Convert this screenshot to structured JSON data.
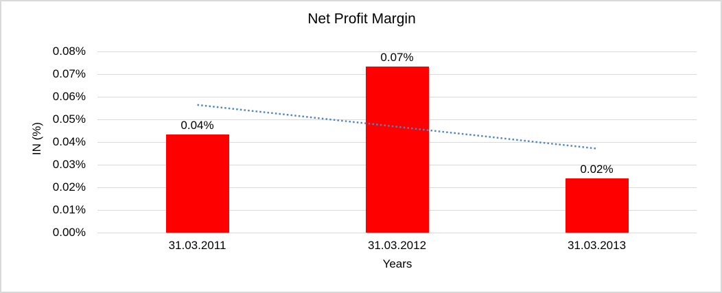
{
  "chart_data": {
    "type": "bar",
    "title": "Net Profit Margin",
    "xlabel": "Years",
    "ylabel": "IN (%)",
    "categories": [
      "31.03.2011",
      "31.03.2012",
      "31.03.2013"
    ],
    "values": [
      0.0432,
      0.0733,
      0.0239
    ],
    "data_labels": [
      "0.04%",
      "0.07%",
      "0.02%"
    ],
    "ylim": [
      0,
      0.08
    ],
    "ytick_step": 0.01,
    "ytick_labels": [
      "0.00%",
      "0.01%",
      "0.02%",
      "0.03%",
      "0.04%",
      "0.05%",
      "0.06%",
      "0.07%",
      "0.08%"
    ],
    "grid": true,
    "legend": "none",
    "bar_color": "#ff0000",
    "gridline_color": "#d9d9d9",
    "border_color": "#d9d9d9",
    "text_color": "#000000",
    "trendline": {
      "type": "linear",
      "style": "dotted",
      "color": "#4f87c5",
      "start_value": 0.0564,
      "end_value": 0.0371
    }
  }
}
